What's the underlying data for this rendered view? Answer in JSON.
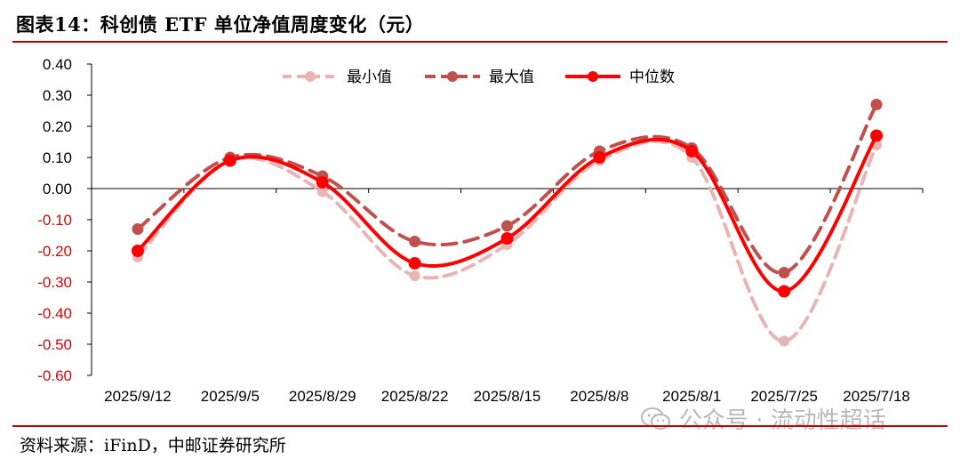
{
  "title": "图表14：科创债 ETF 单位净值周度变化（元）",
  "source": "资料来源：iFinD，中邮证券研究所",
  "watermark": "公众号 · 流动性超话",
  "colors": {
    "min": "#e8b4b4",
    "max": "#c0504d",
    "median": "#ff0000",
    "accent": "#c00000",
    "negative_tick": "#e00000"
  },
  "icons": {
    "watermark": "wechat-icon"
  },
  "chart_data": {
    "type": "line",
    "categories": [
      "2025/9/12",
      "2025/9/5",
      "2025/8/29",
      "2025/8/22",
      "2025/8/15",
      "2025/8/8",
      "2025/8/1",
      "2025/7/25",
      "2025/7/18"
    ],
    "series": [
      {
        "name": "最小值",
        "values": [
          -0.22,
          0.09,
          -0.01,
          -0.28,
          -0.18,
          0.09,
          0.1,
          -0.49,
          0.14
        ],
        "style": "dashed",
        "color": "#e8b4b4"
      },
      {
        "name": "最大值",
        "values": [
          -0.13,
          0.1,
          0.04,
          -0.17,
          -0.12,
          0.12,
          0.13,
          -0.27,
          0.27
        ],
        "style": "dashed",
        "color": "#c0504d"
      },
      {
        "name": "中位数",
        "values": [
          -0.2,
          0.09,
          0.02,
          -0.24,
          -0.16,
          0.1,
          0.12,
          -0.33,
          0.17
        ],
        "style": "solid",
        "color": "#ff0000"
      }
    ],
    "yticks": [
      "0.40",
      "0.30",
      "0.20",
      "0.10",
      "0.00",
      "-0.10",
      "-0.20",
      "-0.30",
      "-0.40",
      "-0.50",
      "-0.60"
    ],
    "ylim": [
      -0.6,
      0.4
    ],
    "legend": "top-center",
    "grid": false
  }
}
